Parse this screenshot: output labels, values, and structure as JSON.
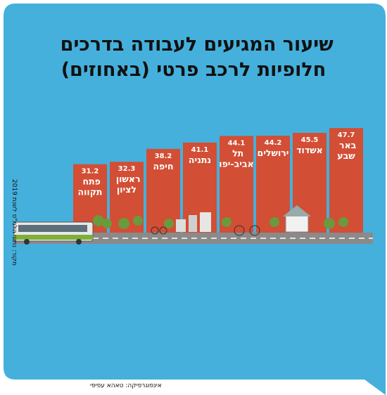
{
  "chart_data": {
    "type": "bar",
    "title": "שיעור המגיעים לעבודה בדרכים חלופיות לרכב פרטי (באחוזים)",
    "categories": [
      "פתח תקווה",
      "ראשון לציון",
      "חיפה",
      "נתניה",
      "תל אביב-יפו",
      "ירושלים",
      "אשדוד",
      "באר שבע"
    ],
    "values": [
      31.2,
      32.3,
      38.2,
      41.1,
      44.1,
      44.2,
      45.5,
      47.7
    ],
    "color": "#d24e35",
    "ylim": [
      0,
      50
    ],
    "source": "מקור: נתוני הלמ\"ס לשנת 2019",
    "credit": "אינפוגרפיקה: טאהא עפיפי"
  }
}
